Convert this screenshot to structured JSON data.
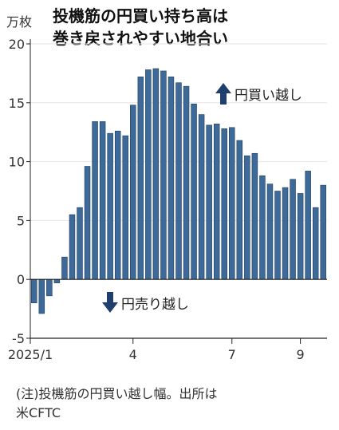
{
  "unit_label": "万枚",
  "title_lines": [
    "投機筋の円買い持ち高は",
    "巻き戻されやすい地合い"
  ],
  "annotations": {
    "buy": "円買い越し",
    "sell": "円売り越し"
  },
  "note_lines": [
    "(注)投機筋の円買い越し幅。出所は",
    "米CFTC"
  ],
  "colors": {
    "bar": "#3d6a99",
    "bar_edge": "#1f3d5c",
    "axis": "#222222",
    "grid": "#e6e6e6",
    "arrow": "#1f3f6e"
  },
  "chart_data": {
    "type": "bar",
    "title": "投機筋の円買い持ち高は巻き戻されやすい地合い",
    "ylabel": "万枚",
    "ylim": [
      -5,
      20
    ],
    "yticks": [
      20,
      15,
      10,
      5,
      0,
      -5
    ],
    "xtick_labels": [
      {
        "label": "2025/1",
        "index": 0
      },
      {
        "label": "4",
        "index": 13
      },
      {
        "label": "7",
        "index": 26
      },
      {
        "label": "9",
        "index": 35
      }
    ],
    "values": [
      -2.0,
      -2.9,
      -1.4,
      -0.3,
      1.9,
      5.5,
      6.1,
      9.6,
      13.4,
      13.4,
      12.4,
      12.6,
      12.2,
      14.8,
      17.2,
      17.8,
      17.9,
      17.7,
      17.2,
      16.7,
      16.4,
      14.9,
      14.0,
      13.1,
      13.2,
      12.8,
      12.9,
      11.8,
      10.5,
      10.7,
      8.8,
      8.1,
      7.5,
      7.8,
      8.5,
      7.3,
      9.2,
      6.1,
      8.0
    ],
    "grid": false,
    "legend": "none"
  }
}
